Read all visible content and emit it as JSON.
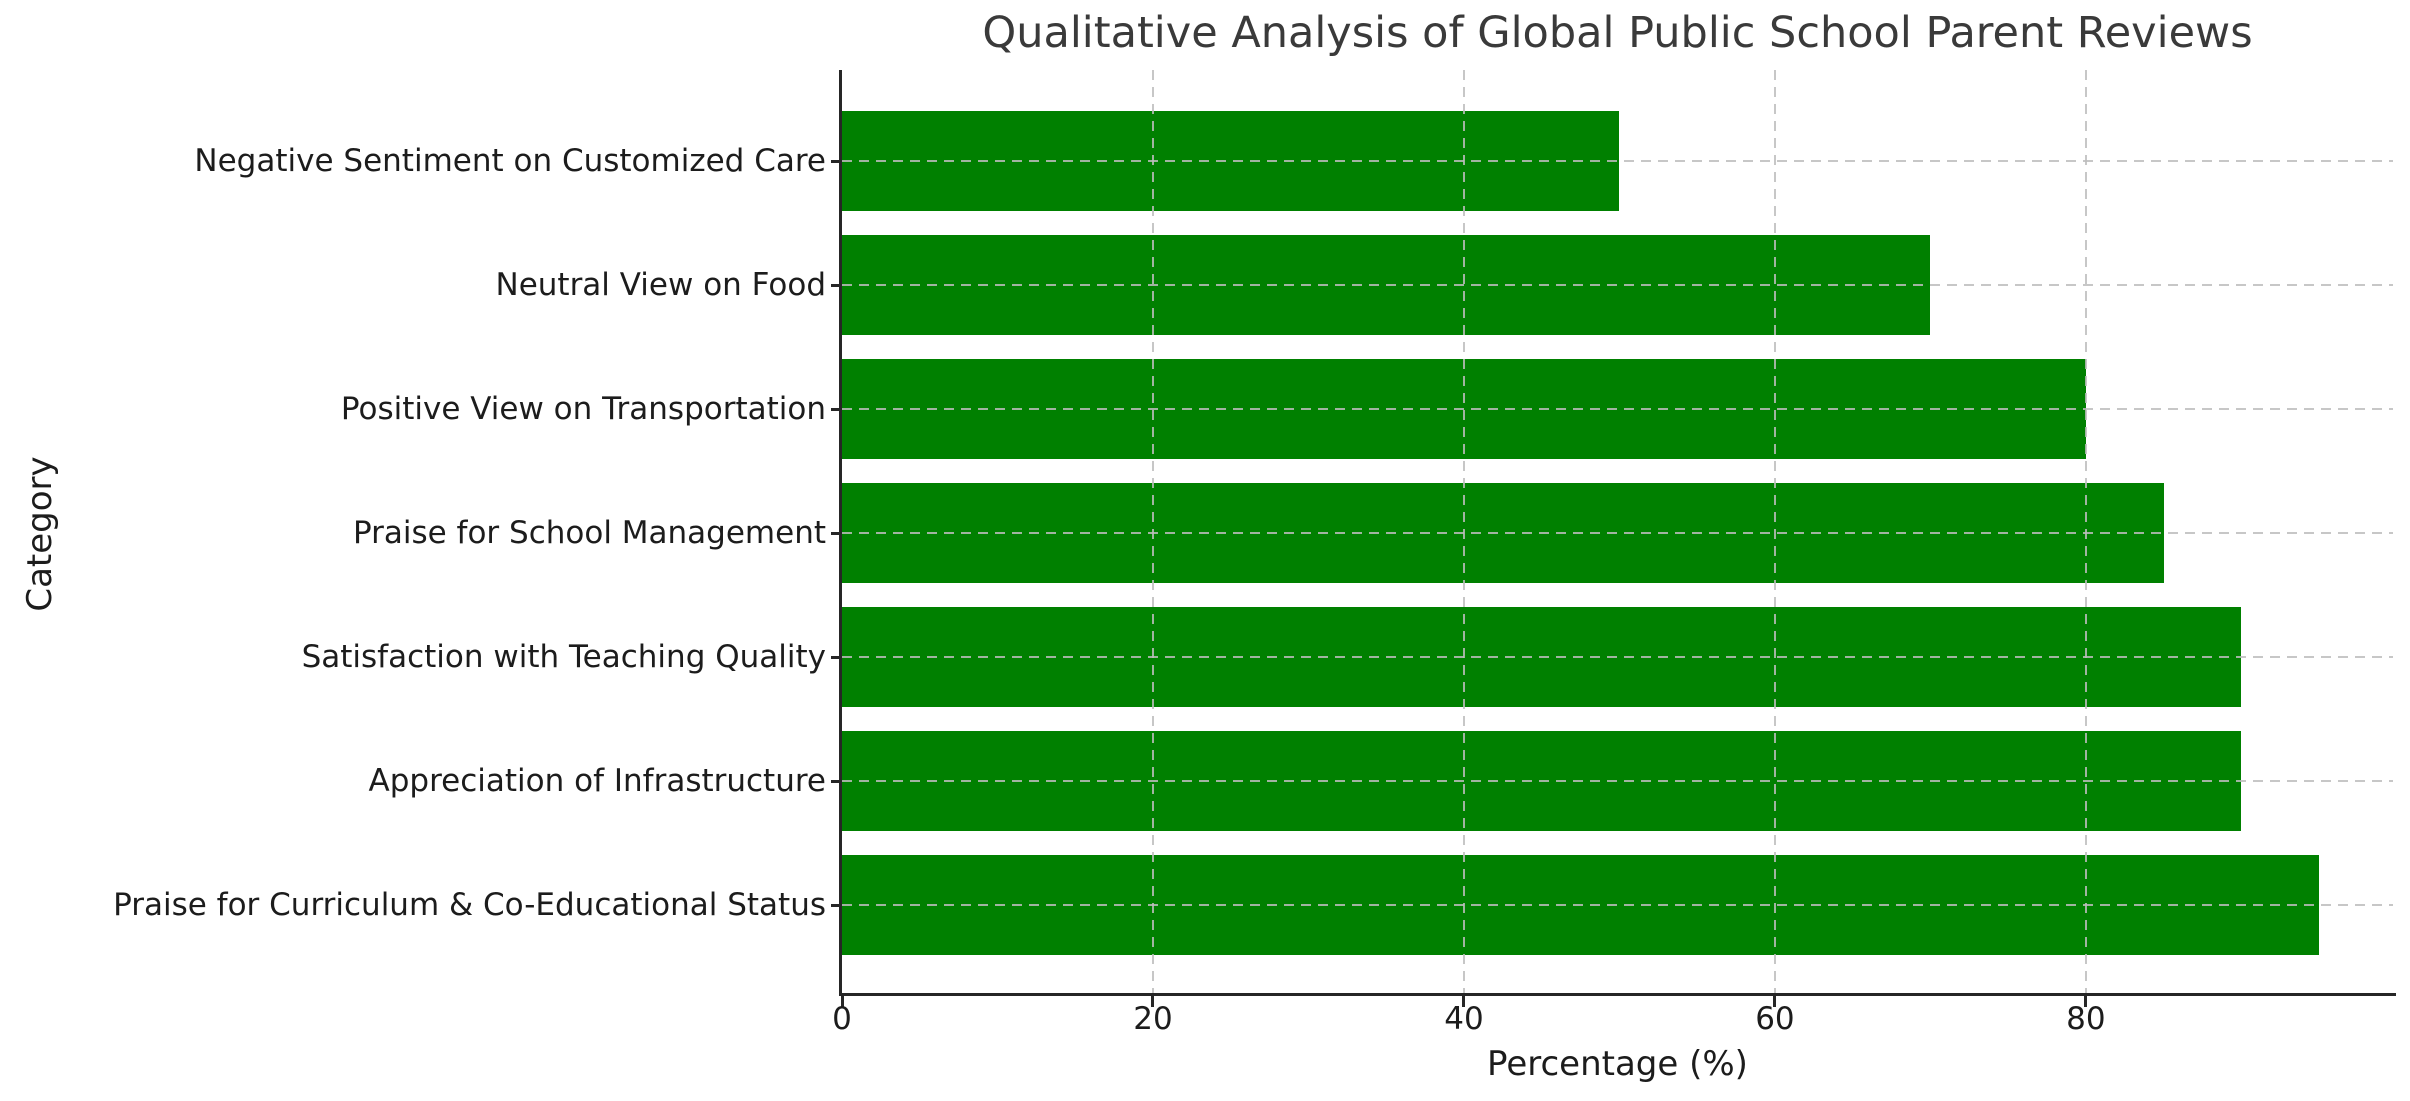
{
  "figure": {
    "background_color": "#ffffff"
  },
  "chart_data": {
    "type": "bar",
    "orientation": "horizontal",
    "title": "Qualitative Analysis of Global Public School Parent Reviews",
    "xlabel": "Percentage (%)",
    "ylabel": "Category",
    "categories": [
      "Negative Sentiment on Customized Care",
      "Neutral View on Food",
      "Positive View on Transportation",
      "Praise for School Management",
      "Satisfaction with Teaching Quality",
      "Appreciation of Infrastructure",
      "Praise for Curriculum & Co-Educational Status"
    ],
    "values": [
      50,
      70,
      80,
      85,
      90,
      90,
      95
    ],
    "xlim": [
      0,
      99.75
    ],
    "xticks": [
      0,
      20,
      40,
      60,
      80
    ],
    "grid": "dashed, both axes, drawn over bars",
    "legend": "none",
    "colors": {
      "bar": "#008000",
      "gridline": "#bdbdbd",
      "spine": "#262626",
      "title_text": "#3a3a3a",
      "tick_text": "#1c1c1c"
    }
  }
}
